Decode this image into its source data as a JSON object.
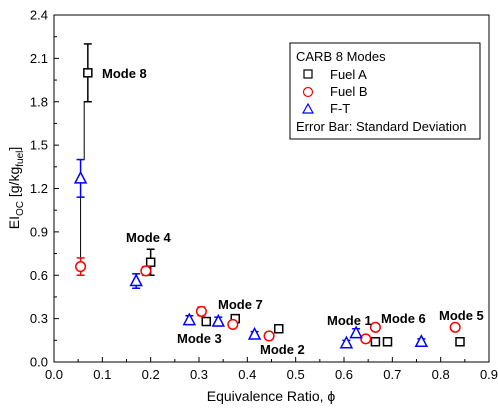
{
  "chart_data": {
    "type": "scatter",
    "xlabel": "Equivalence Ratio, ϕ",
    "ylabel": {
      "main": "EI",
      "sub": "OC",
      "rest": " [g/kg",
      "sub2": "fuel",
      "end": "]"
    },
    "xlim": [
      0.0,
      0.9
    ],
    "ylim": [
      0.0,
      2.4
    ],
    "xticks": [
      "0.0",
      "0.1",
      "0.2",
      "0.3",
      "0.4",
      "0.5",
      "0.6",
      "0.7",
      "0.8",
      "0.9"
    ],
    "yticks": [
      "0.0",
      "0.3",
      "0.6",
      "0.9",
      "1.2",
      "1.5",
      "1.8",
      "2.1",
      "2.4"
    ],
    "grid": false,
    "legend": {
      "title": "CARB 8 Modes",
      "entries": [
        "Fuel A",
        "Fuel B",
        "F-T"
      ],
      "note": "Error Bar: Standard Deviation",
      "placement": "top-right"
    },
    "series": [
      {
        "name": "Fuel A",
        "marker": "square",
        "color": "#000000",
        "x": [
          0.07,
          0.2,
          0.315,
          0.375,
          0.465,
          0.665,
          0.69,
          0.84
        ],
        "y": [
          2.0,
          0.69,
          0.28,
          0.3,
          0.23,
          0.14,
          0.14,
          0.14
        ],
        "err": [
          0.2,
          0.09,
          0.02,
          0.02,
          0.02,
          0.02,
          0.02,
          0.02
        ]
      },
      {
        "name": "Fuel B",
        "marker": "circle",
        "color": "#ff0000",
        "x": [
          0.055,
          0.19,
          0.305,
          0.37,
          0.445,
          0.645,
          0.665,
          0.83
        ],
        "y": [
          0.66,
          0.63,
          0.35,
          0.26,
          0.18,
          0.16,
          0.24,
          0.24
        ],
        "err": [
          0.06,
          0.03,
          0.03,
          0.02,
          0.02,
          0.02,
          0.02,
          0.02
        ]
      },
      {
        "name": "F-T",
        "marker": "triangle",
        "color": "#0000ff",
        "x": [
          0.055,
          0.17,
          0.28,
          0.34,
          0.415,
          0.605,
          0.625,
          0.76
        ],
        "y": [
          1.27,
          0.56,
          0.29,
          0.28,
          0.19,
          0.13,
          0.2,
          0.14
        ],
        "err": [
          0.13,
          0.05,
          0.03,
          0.03,
          0.02,
          0.02,
          0.03,
          0.02
        ]
      }
    ],
    "annotations": [
      {
        "text": "Mode 8"
      },
      {
        "text": "Mode 4"
      },
      {
        "text": "Mode 7"
      },
      {
        "text": "Mode 3"
      },
      {
        "text": "Mode 2"
      },
      {
        "text": "Mode 1"
      },
      {
        "text": "Mode 6"
      },
      {
        "text": "Mode 5"
      }
    ]
  }
}
